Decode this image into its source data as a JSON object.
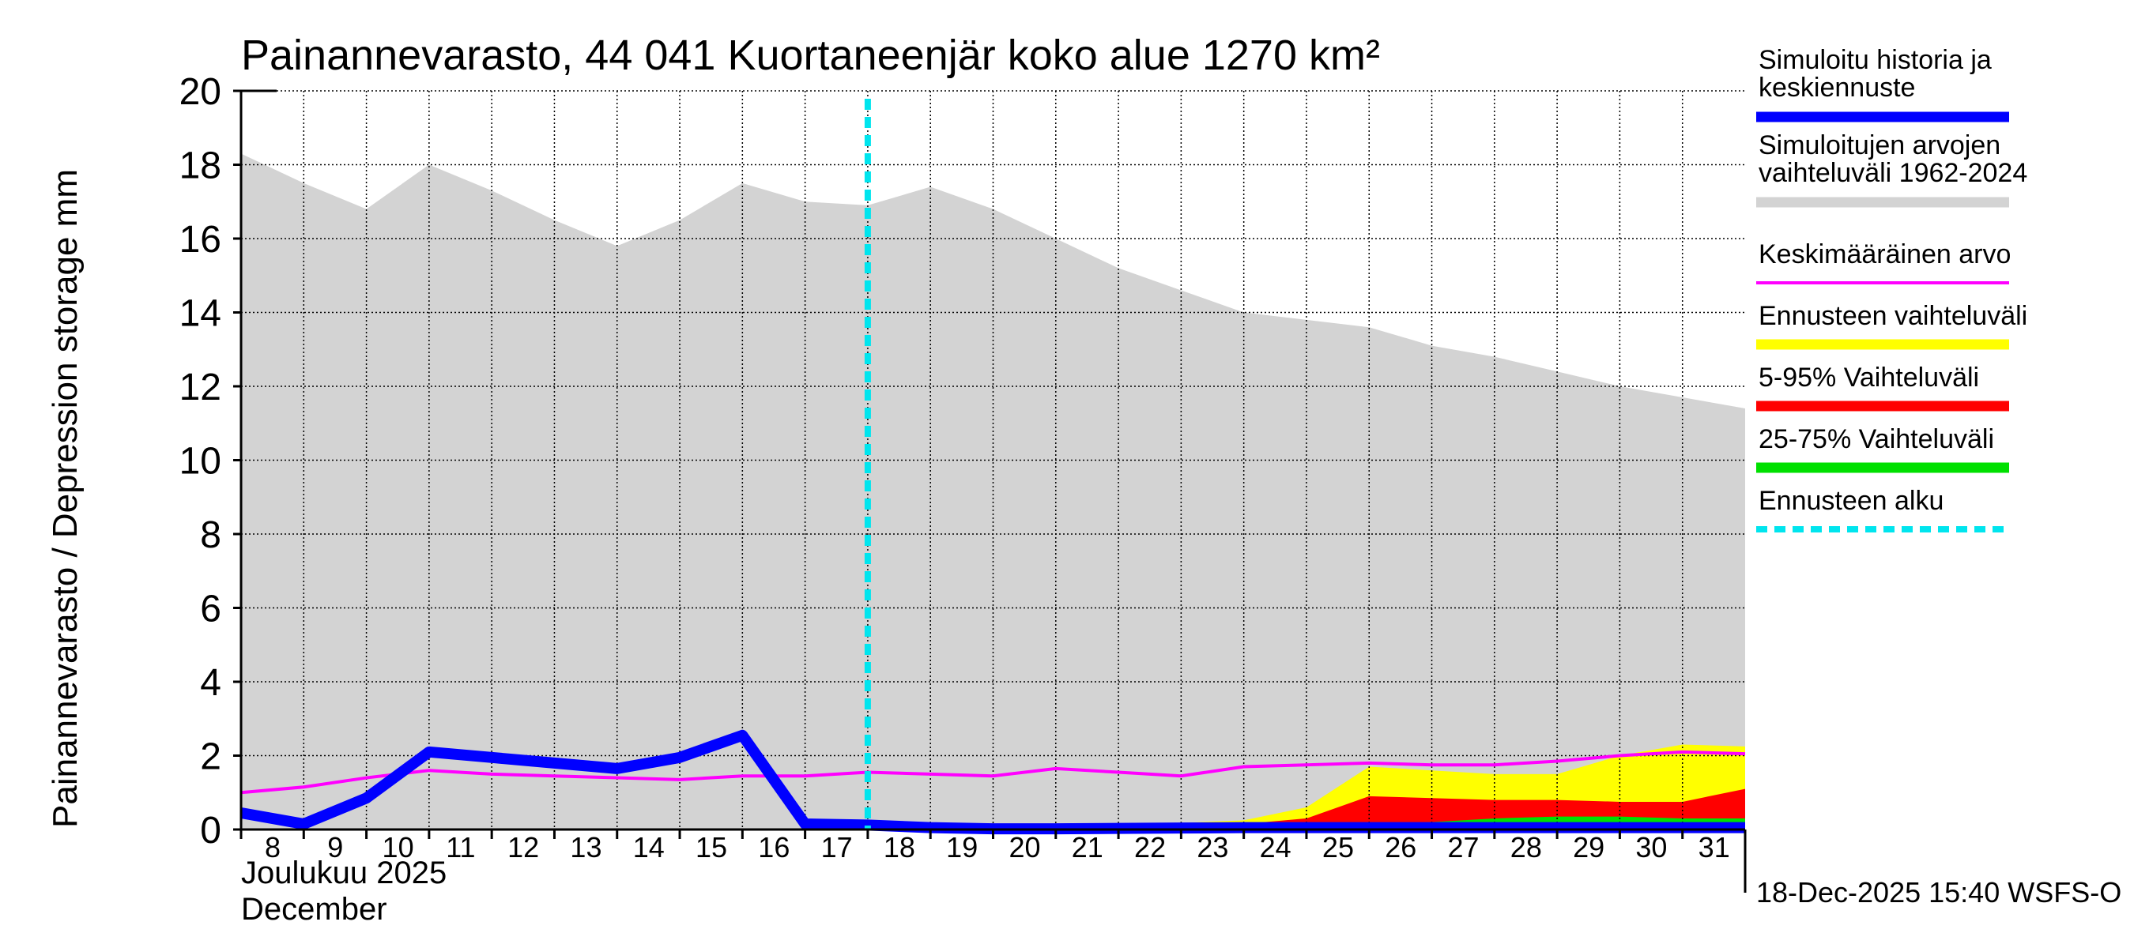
{
  "chart_data": {
    "type": "area",
    "title": "Painannevarasto, 44 041 Kuortaneenjär koko alue 1270 km²",
    "ylabel": "Painannevarasto / Depression storage    mm",
    "xlabel_line1": "Joulukuu  2025",
    "xlabel_line2": "December",
    "ylim": [
      0,
      20
    ],
    "xlim": [
      8,
      32
    ],
    "yticks": [
      0,
      2,
      4,
      6,
      8,
      10,
      12,
      14,
      16,
      18,
      20
    ],
    "xtick_labels": [
      "8",
      "9",
      "10",
      "11",
      "12",
      "13",
      "14",
      "15",
      "16",
      "17",
      "18",
      "19",
      "20",
      "21",
      "22",
      "23",
      "24",
      "25",
      "26",
      "27",
      "28",
      "29",
      "30",
      "31"
    ],
    "forecast_start": 18,
    "timestamp": "18-Dec-2025 15:40 WSFS-O",
    "series": {
      "range_max": {
        "name": "Simuloitujen arvojen vaihteluväli 1962-2024",
        "x": [
          8,
          9,
          10,
          11,
          12,
          13,
          14,
          15,
          16,
          17,
          18,
          19,
          20,
          21,
          22,
          23,
          24,
          25,
          26,
          27,
          28,
          29,
          30,
          31,
          32
        ],
        "values": [
          18.3,
          17.5,
          16.8,
          18.0,
          17.3,
          16.5,
          15.8,
          16.5,
          17.5,
          17.0,
          16.9,
          17.4,
          16.8,
          16.0,
          15.2,
          14.6,
          14.0,
          13.8,
          13.6,
          13.1,
          12.8,
          12.4,
          12.0,
          11.7,
          11.4
        ]
      },
      "mean": {
        "name": "Keskimääräinen arvo",
        "x": [
          8,
          9,
          10,
          11,
          12,
          13,
          14,
          15,
          16,
          17,
          18,
          19,
          20,
          21,
          22,
          23,
          24,
          25,
          26,
          27,
          28,
          29,
          30,
          31,
          32
        ],
        "values": [
          1.0,
          1.15,
          1.4,
          1.6,
          1.5,
          1.45,
          1.4,
          1.35,
          1.45,
          1.45,
          1.55,
          1.5,
          1.45,
          1.65,
          1.55,
          1.45,
          1.7,
          1.75,
          1.8,
          1.75,
          1.75,
          1.85,
          2.0,
          2.1,
          2.05
        ]
      },
      "yellow_upper": {
        "name": "Ennusteen vaihteluväli",
        "x": [
          18,
          19,
          20,
          21,
          22,
          23,
          24,
          25,
          26,
          27,
          28,
          29,
          30,
          31,
          32
        ],
        "values": [
          0.1,
          0.05,
          0.05,
          0.08,
          0.12,
          0.18,
          0.25,
          0.6,
          1.7,
          1.6,
          1.5,
          1.5,
          2.0,
          2.3,
          2.25
        ]
      },
      "red_upper": {
        "name": "5-95% Vaihteluväli",
        "x": [
          18,
          19,
          20,
          21,
          22,
          23,
          24,
          25,
          26,
          27,
          28,
          29,
          30,
          31,
          32
        ],
        "values": [
          0.1,
          0.05,
          0.05,
          0.06,
          0.1,
          0.12,
          0.15,
          0.3,
          0.9,
          0.85,
          0.8,
          0.8,
          0.75,
          0.75,
          1.1
        ]
      },
      "green_upper": {
        "name": "25-75% Vaihteluväli",
        "x": [
          18,
          19,
          20,
          21,
          22,
          23,
          24,
          25,
          26,
          27,
          28,
          29,
          30,
          31,
          32
        ],
        "values": [
          0.08,
          0.04,
          0.03,
          0.04,
          0.05,
          0.06,
          0.08,
          0.1,
          0.15,
          0.2,
          0.3,
          0.35,
          0.35,
          0.3,
          0.3
        ]
      },
      "simulated": {
        "name": "Simuloitu historia ja keskiennuste",
        "x": [
          8,
          9,
          10,
          11,
          12,
          13,
          14,
          15,
          16,
          17,
          18,
          19,
          20,
          21,
          22,
          23,
          24,
          25,
          26,
          27,
          28,
          29,
          30,
          31,
          32
        ],
        "values": [
          0.45,
          0.15,
          0.85,
          2.1,
          1.95,
          1.8,
          1.65,
          1.95,
          2.55,
          0.15,
          0.12,
          0.05,
          0.02,
          0.02,
          0.03,
          0.04,
          0.05,
          0.05,
          0.05,
          0.05,
          0.05,
          0.05,
          0.05,
          0.05,
          0.05
        ]
      }
    },
    "legend": [
      {
        "label": "Simuloitu historia ja",
        "label2": "keskiennuste",
        "color": "#0000ff",
        "style": "thick"
      },
      {
        "label": "Simuloitujen arvojen",
        "label2": "vaihteluväli 1962-2024",
        "color": "#d3d3d3",
        "style": "thick"
      },
      {
        "label": "Keskimääräinen arvo",
        "label2": "",
        "color": "#ff00ff",
        "style": "thin"
      },
      {
        "label": "Ennusteen vaihteluväli",
        "label2": "",
        "color": "#ffff00",
        "style": "thick"
      },
      {
        "label": "5-95% Vaihteluväli",
        "label2": "",
        "color": "#ff0000",
        "style": "thick"
      },
      {
        "label": "25-75% Vaihteluväli",
        "label2": "",
        "color": "#00e000",
        "style": "thick"
      },
      {
        "label": "Ennusteen alku",
        "label2": "",
        "color": "#00e5ee",
        "style": "dashed"
      }
    ]
  }
}
